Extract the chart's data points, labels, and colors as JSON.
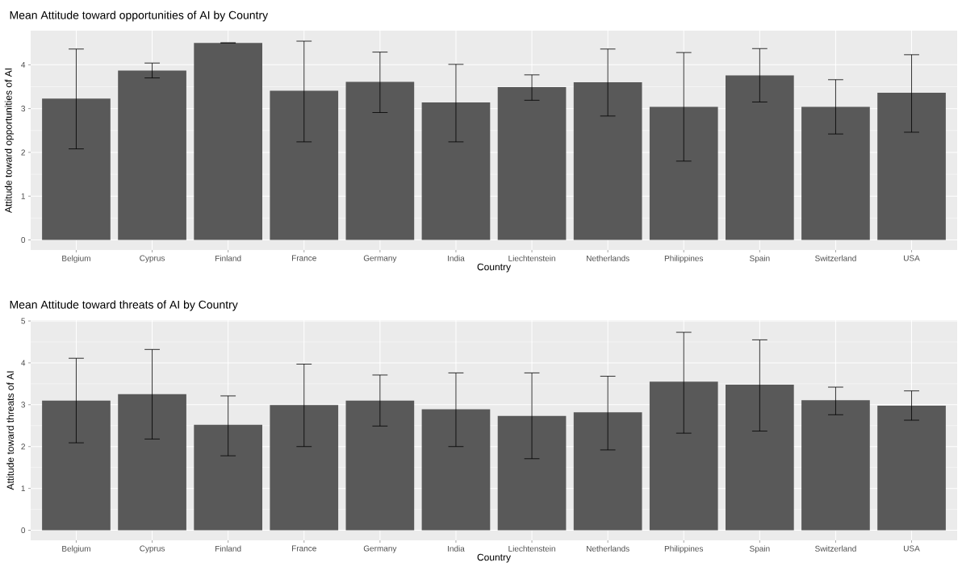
{
  "chart_data": [
    {
      "type": "bar",
      "title": "Mean Attitude toward opportunities of AI by Country",
      "xlabel": "Country",
      "ylabel": "Attitude toward opportunities of AI",
      "categories": [
        "Belgium",
        "Cyprus",
        "Finland",
        "France",
        "Germany",
        "India",
        "Liechtenstein",
        "Netherlands",
        "Philippines",
        "Spain",
        "Switzerland",
        "USA"
      ],
      "values": [
        3.23,
        3.87,
        4.5,
        3.41,
        3.61,
        3.14,
        3.49,
        3.6,
        3.04,
        3.76,
        3.04,
        3.36
      ],
      "errors": [
        [
          2.08,
          4.36
        ],
        [
          3.7,
          4.04
        ],
        [
          4.5,
          4.5
        ],
        [
          2.24,
          4.54
        ],
        [
          2.91,
          4.29
        ],
        [
          2.24,
          4.01
        ],
        [
          3.19,
          3.77
        ],
        [
          2.83,
          4.36
        ],
        [
          1.8,
          4.28
        ],
        [
          3.15,
          4.37
        ],
        [
          2.42,
          3.66
        ],
        [
          2.46,
          4.23
        ]
      ],
      "color": "#595959",
      "ylim": [
        -0.23,
        4.78
      ],
      "yticks": [
        0,
        1,
        2,
        3,
        4
      ],
      "grid": true
    },
    {
      "type": "bar",
      "title": "Mean Attitude toward threats of AI by Country",
      "xlabel": "Country",
      "ylabel": "Attitude toward threats of AI",
      "categories": [
        "Belgium",
        "Cyprus",
        "Finland",
        "France",
        "Germany",
        "India",
        "Liechtenstein",
        "Netherlands",
        "Philippines",
        "Spain",
        "Switzerland",
        "USA"
      ],
      "values": [
        3.1,
        3.25,
        2.52,
        2.99,
        3.1,
        2.89,
        2.73,
        2.82,
        3.55,
        3.48,
        3.11,
        2.98
      ],
      "errors": [
        [
          2.09,
          4.11
        ],
        [
          2.18,
          4.32
        ],
        [
          1.78,
          3.21
        ],
        [
          2.0,
          3.97
        ],
        [
          2.49,
          3.71
        ],
        [
          2.0,
          3.76
        ],
        [
          1.71,
          3.76
        ],
        [
          1.92,
          3.68
        ],
        [
          2.32,
          4.73
        ],
        [
          2.37,
          4.55
        ],
        [
          2.76,
          3.42
        ],
        [
          2.63,
          3.33
        ]
      ],
      "color": "#595959",
      "ylim": [
        -0.24,
        5.02
      ],
      "yticks": [
        0,
        1,
        2,
        3,
        4,
        5
      ],
      "grid": true
    }
  ]
}
